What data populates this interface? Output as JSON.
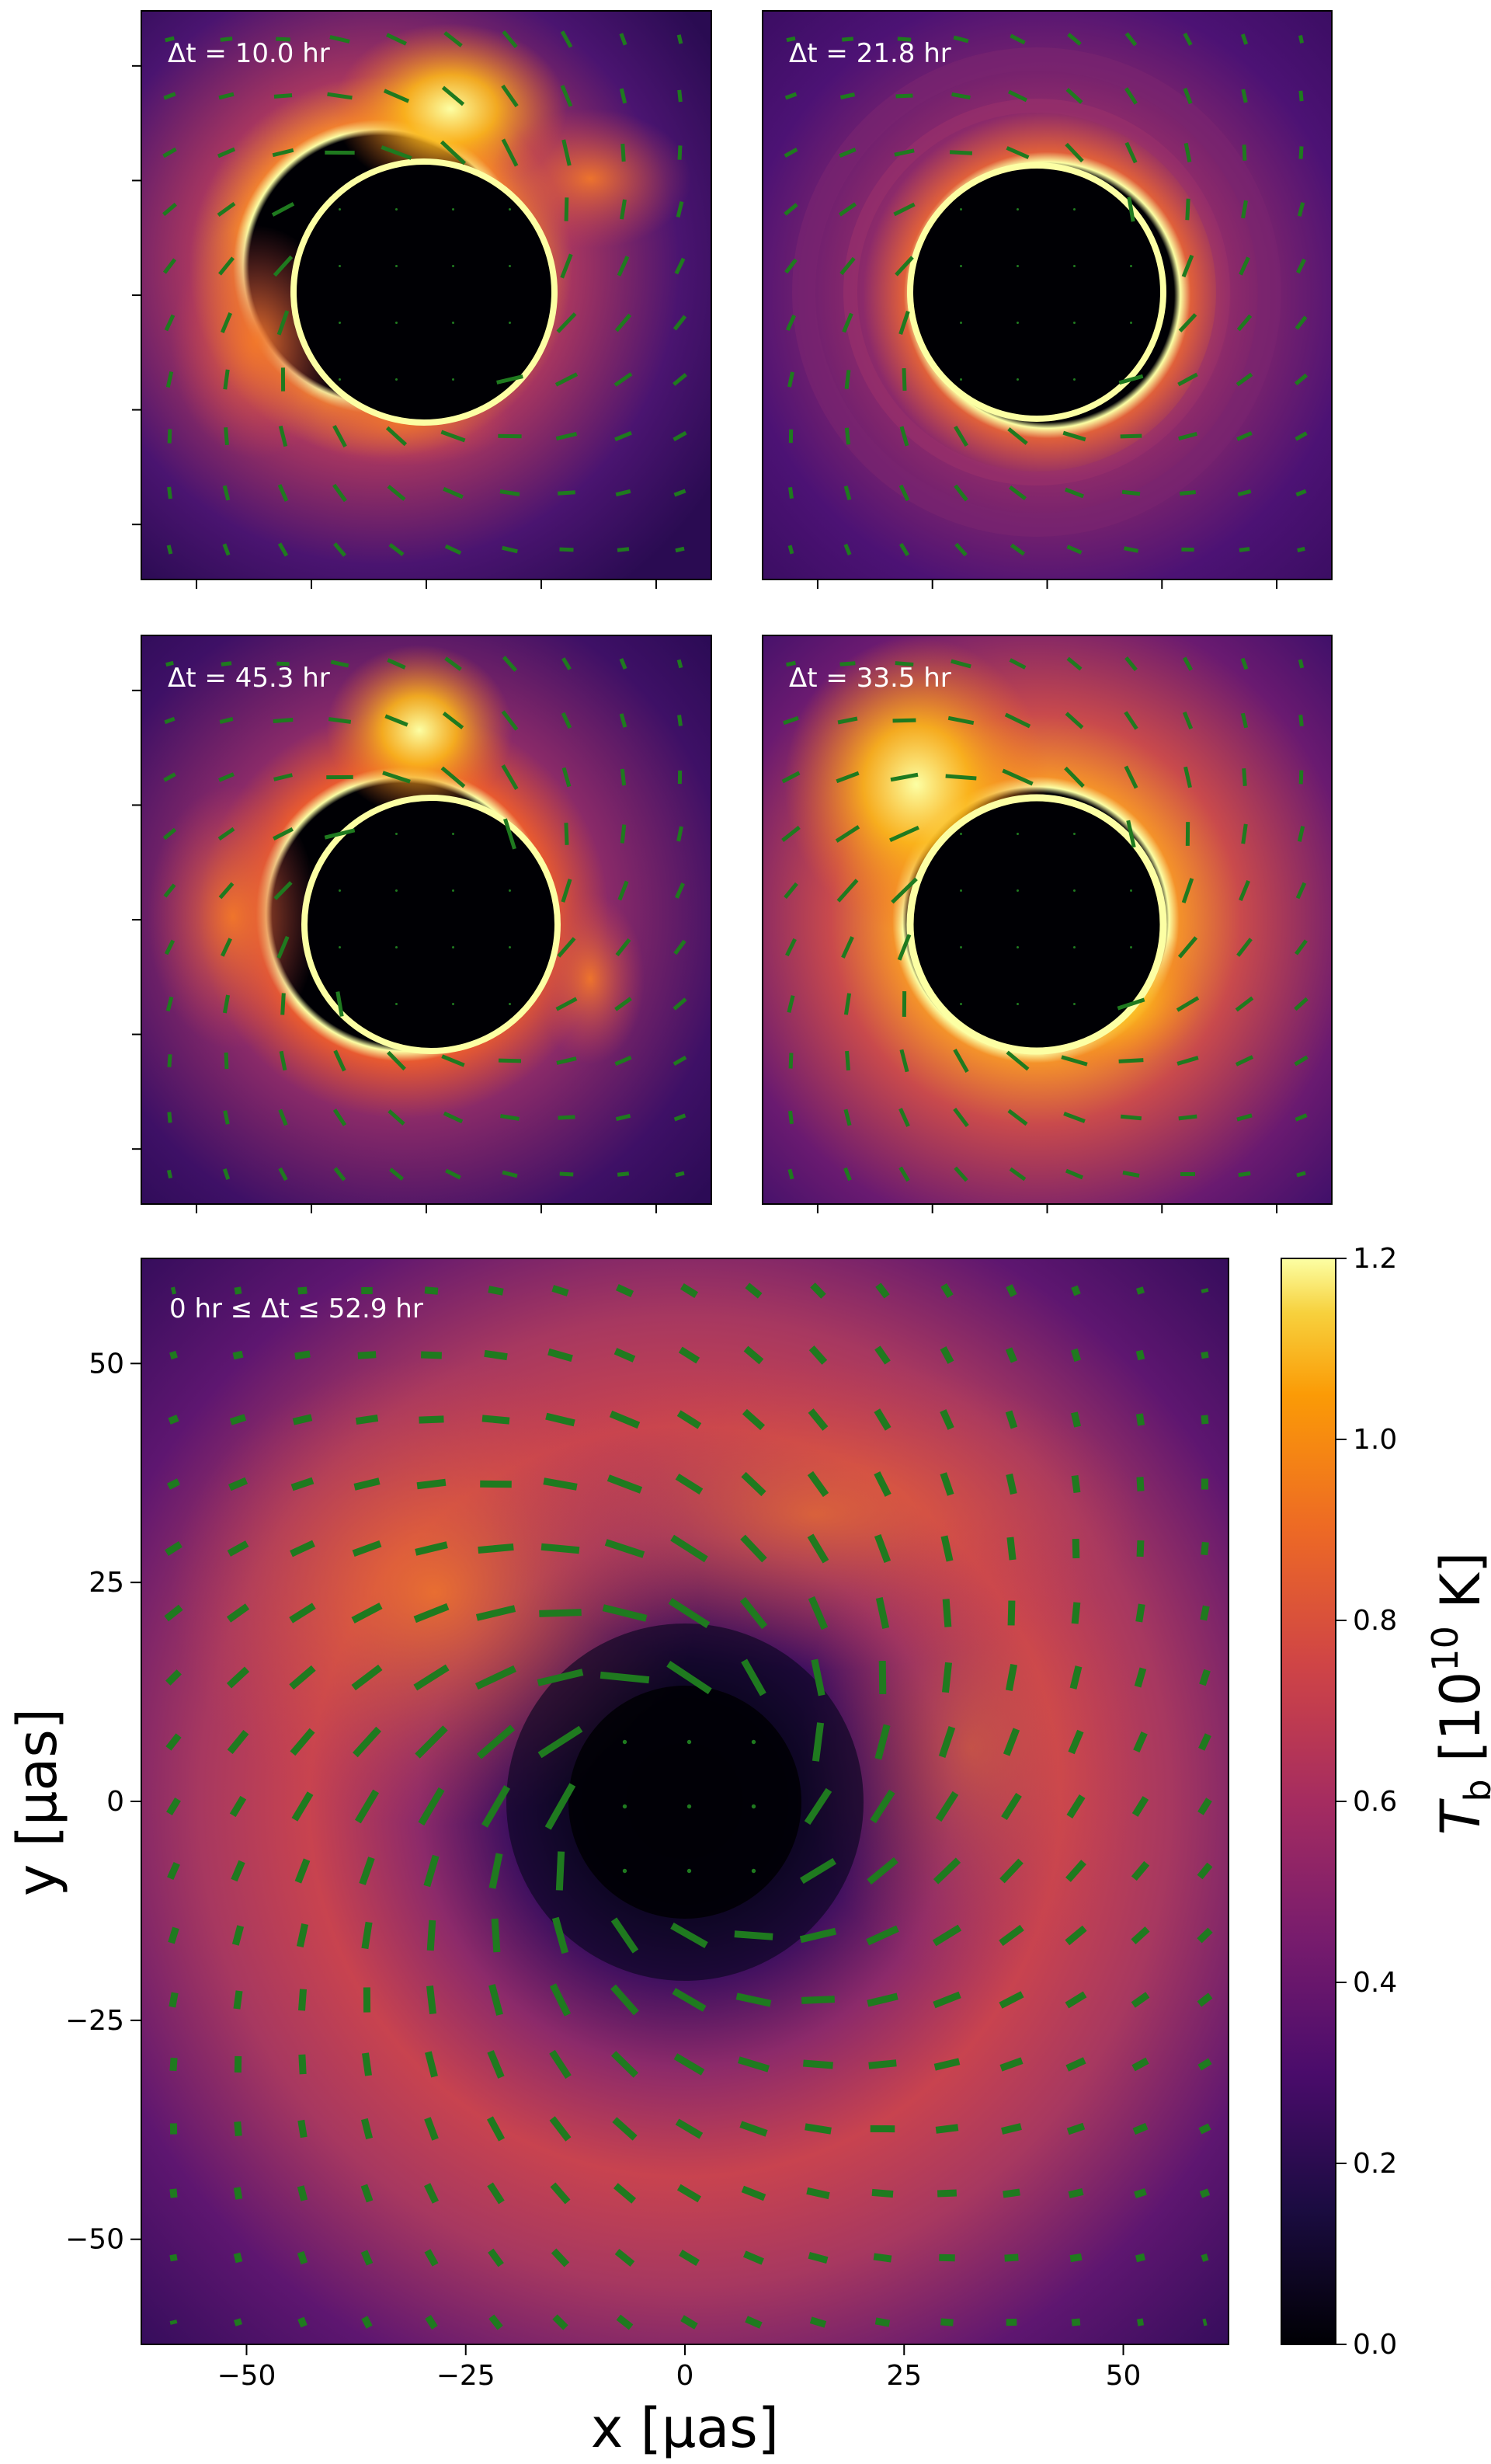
{
  "chart_data": {
    "type": "heatmap",
    "panels": [
      {
        "label": "Δt = 10.0 hr",
        "id": "p1"
      },
      {
        "label": "Δt = 21.8 hr",
        "id": "p2"
      },
      {
        "label": "Δt = 45.3 hr",
        "id": "p3"
      },
      {
        "label": "Δt = 33.5 hr",
        "id": "p4"
      },
      {
        "label": "0 hr ≤ Δt ≤ 52.9 hr",
        "id": "avg"
      }
    ],
    "xlabel": "x [μas]",
    "ylabel": "y [μas]",
    "xlim": [
      -62,
      62
    ],
    "ylim": [
      -62,
      62
    ],
    "xticks": [
      "−50",
      "−25",
      "0",
      "25",
      "50"
    ],
    "yticks": [
      "−50",
      "−25",
      "0",
      "25",
      "50"
    ],
    "xtick_values": [
      -50,
      -25,
      0,
      25,
      50
    ],
    "ytick_values": [
      -50,
      -25,
      0,
      25,
      50
    ],
    "colorbar": {
      "label": "T_b [10^10 K]",
      "label_text": "T",
      "label_sub": "b",
      "label_rest": " [10",
      "label_sup": "10",
      "label_end": " K]",
      "range": [
        0.0,
        1.2
      ],
      "ticks": [
        "0.0",
        "0.2",
        "0.4",
        "0.6",
        "0.8",
        "1.0",
        "1.2"
      ],
      "tick_values": [
        0.0,
        0.2,
        0.4,
        0.6,
        0.8,
        1.0,
        1.2
      ],
      "colormap": "inferno"
    },
    "vector_color": "#1f7a1f"
  }
}
